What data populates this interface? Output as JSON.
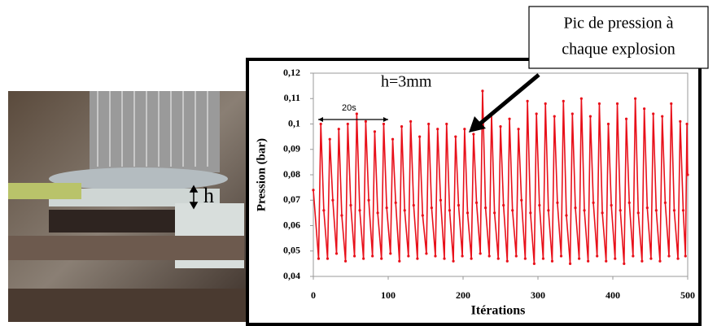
{
  "chart_data": {
    "type": "line",
    "ylabel": "Pression (bar)",
    "xlabel": "Itérations",
    "annotations": {
      "callout": [
        "Pic de pression à",
        "chaque explosion"
      ],
      "height": "h=3mm",
      "period": "20s"
    },
    "x": [
      0,
      7,
      10,
      14,
      19,
      22,
      26,
      31,
      34,
      38,
      43,
      46,
      50,
      55,
      58,
      62,
      67,
      70,
      74,
      79,
      82,
      86,
      91,
      94,
      98,
      103,
      106,
      110,
      115,
      118,
      122,
      127,
      130,
      134,
      139,
      142,
      146,
      151,
      154,
      158,
      163,
      166,
      170,
      175,
      178,
      182,
      187,
      190,
      194,
      199,
      202,
      206,
      211,
      214,
      218,
      223,
      226,
      230,
      235,
      238,
      242,
      247,
      250,
      254,
      259,
      262,
      266,
      271,
      274,
      278,
      283,
      286,
      290,
      295,
      298,
      302,
      307,
      310,
      314,
      319,
      322,
      326,
      331,
      334,
      338,
      343,
      346,
      350,
      355,
      358,
      362,
      367,
      370,
      374,
      379,
      382,
      386,
      391,
      394,
      398,
      403,
      406,
      410,
      415,
      418,
      422,
      427,
      430,
      434,
      439,
      442,
      446,
      451,
      454,
      458,
      463,
      466,
      470,
      475,
      478,
      482,
      487,
      490,
      494,
      497,
      499,
      500
    ],
    "series": [
      {
        "color": "#e8101a",
        "values": [
          0.074,
          0.047,
          0.1,
          0.066,
          0.047,
          0.094,
          0.07,
          0.049,
          0.098,
          0.064,
          0.046,
          0.1,
          0.068,
          0.048,
          0.104,
          0.066,
          0.047,
          0.101,
          0.07,
          0.048,
          0.097,
          0.065,
          0.047,
          0.1,
          0.067,
          0.049,
          0.094,
          0.069,
          0.046,
          0.099,
          0.066,
          0.048,
          0.101,
          0.068,
          0.047,
          0.095,
          0.064,
          0.049,
          0.1,
          0.067,
          0.048,
          0.098,
          0.07,
          0.047,
          0.1,
          0.066,
          0.046,
          0.095,
          0.068,
          0.048,
          0.098,
          0.065,
          0.047,
          0.096,
          0.069,
          0.049,
          0.113,
          0.067,
          0.048,
          0.104,
          0.065,
          0.047,
          0.099,
          0.068,
          0.046,
          0.102,
          0.066,
          0.048,
          0.098,
          0.07,
          0.047,
          0.109,
          0.065,
          0.045,
          0.104,
          0.068,
          0.047,
          0.108,
          0.066,
          0.046,
          0.103,
          0.069,
          0.048,
          0.109,
          0.064,
          0.045,
          0.104,
          0.067,
          0.047,
          0.11,
          0.066,
          0.046,
          0.103,
          0.069,
          0.048,
          0.108,
          0.065,
          0.046,
          0.1,
          0.068,
          0.047,
          0.108,
          0.066,
          0.045,
          0.102,
          0.069,
          0.048,
          0.11,
          0.065,
          0.046,
          0.106,
          0.067,
          0.047,
          0.104,
          0.066,
          0.046,
          0.103,
          0.069,
          0.048,
          0.108,
          0.066,
          0.047,
          0.101,
          0.066,
          0.048,
          0.1,
          0.08
        ]
      }
    ],
    "xlim": [
      0,
      500
    ],
    "xticks": [
      0,
      100,
      200,
      300,
      400,
      500
    ],
    "ylim": [
      0.04,
      0.12
    ],
    "yticks": [
      {
        "value": 0.04,
        "label": "0,04"
      },
      {
        "value": 0.05,
        "label": "0,05"
      },
      {
        "value": 0.06,
        "label": "0,06"
      },
      {
        "value": 0.07,
        "label": "0,07"
      },
      {
        "value": 0.08,
        "label": "0,08"
      },
      {
        "value": 0.09,
        "label": "0,09"
      },
      {
        "value": 0.1,
        "label": "0,1"
      },
      {
        "value": 0.11,
        "label": "0,11"
      },
      {
        "value": 0.12,
        "label": "0,12"
      }
    ],
    "grid": false
  },
  "photo": {
    "label": "h"
  }
}
